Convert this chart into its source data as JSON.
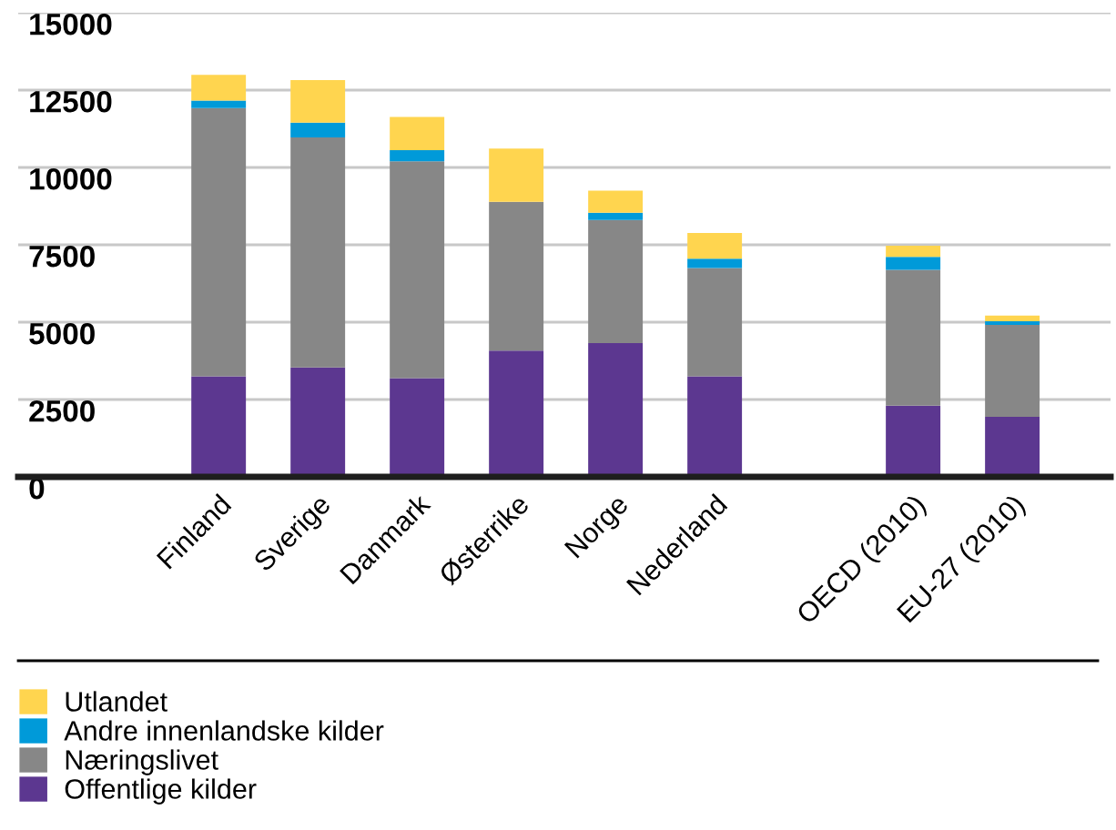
{
  "chart_data": {
    "type": "bar",
    "stacked": true,
    "categories": [
      "Finland",
      "Sverige",
      "Danmark",
      "Østerrike",
      "Norge",
      "Nederland",
      null,
      "OECD (2010)",
      "EU-27 (2010)"
    ],
    "series": [
      {
        "name": "Offentlige kilder",
        "color": "#5c3790",
        "values": [
          3250,
          3540,
          3190,
          4080,
          4320,
          3250,
          null,
          2300,
          1940
        ]
      },
      {
        "name": "Næringslivet",
        "color": "#878787",
        "values": [
          8670,
          7430,
          7010,
          4810,
          3980,
          3500,
          null,
          4390,
          2970
        ]
      },
      {
        "name": "Andre innenlandske kilder",
        "color": "#009ad9",
        "values": [
          240,
          480,
          360,
          0,
          240,
          300,
          null,
          420,
          120
        ]
      },
      {
        "name": "Utlandet",
        "color": "#ffd54f",
        "values": [
          830,
          1370,
          1070,
          1720,
          710,
          830,
          null,
          360,
          180
        ]
      }
    ],
    "ylim": [
      0,
      15000
    ],
    "yticks": [
      0,
      2500,
      5000,
      7500,
      10000,
      12500,
      15000
    ],
    "grid": "y",
    "legend": "bottom"
  }
}
